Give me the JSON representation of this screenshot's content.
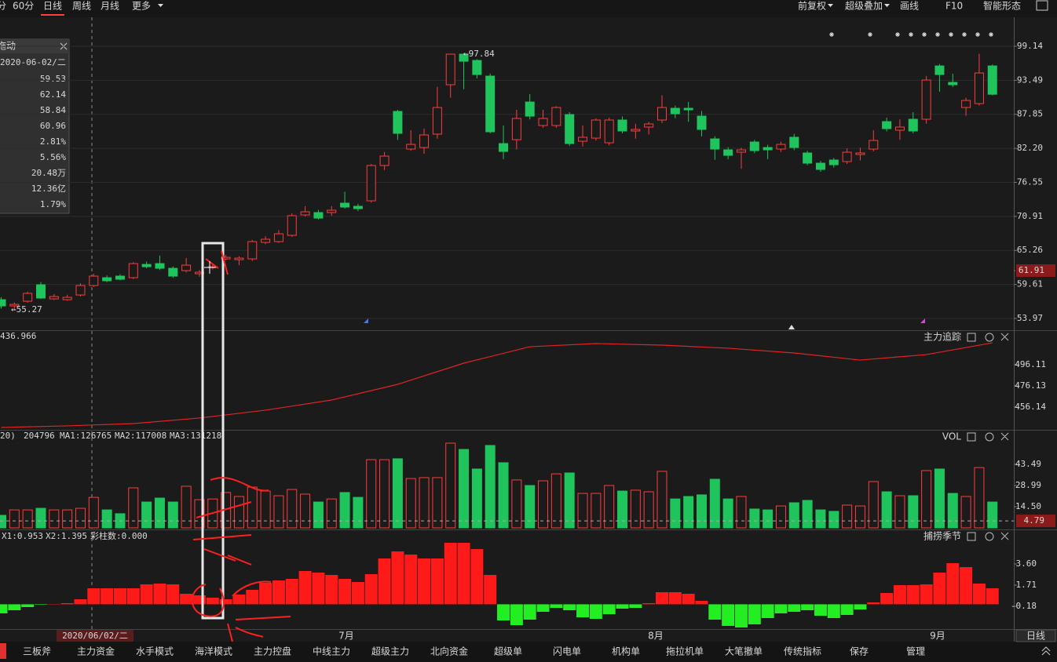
{
  "toolbar": {
    "left": [
      "分",
      "60分",
      "日线",
      "周线",
      "月线",
      "更多"
    ],
    "right": [
      "前复权",
      "超级叠加",
      "画线",
      "F10",
      "智能形态"
    ]
  },
  "info_panel": {
    "title": "拖动",
    "date": "2020-06-02/二",
    "values": [
      "59.53",
      "62.14",
      "58.84",
      "60.96",
      "2.81%",
      "5.56%",
      "20.48万",
      "12.36亿",
      "1.79%"
    ]
  },
  "price_panel": {
    "ylim": [
      52.14,
      103.96
    ],
    "yticks": [
      99.14,
      93.49,
      87.85,
      {
        "value": 82.2,
        "label": "82.20"
      },
      76.55,
      70.91,
      65.26,
      59.61,
      53.97
    ],
    "high_label": "←97.84",
    "low_label": "←55.27",
    "last_price": 61.91,
    "ohlc": [
      [
        57.08,
        57.5,
        55.6,
        56.04
      ],
      [
        56.04,
        56.6,
        55.27,
        56.3
      ],
      [
        56.82,
        58.4,
        56.6,
        58.13
      ],
      [
        59.56,
        60.0,
        57.2,
        57.35
      ],
      [
        57.21,
        58.0,
        57.0,
        57.6
      ],
      [
        57.08,
        57.9,
        56.9,
        57.47
      ],
      [
        57.86,
        59.8,
        57.6,
        59.43
      ],
      [
        59.43,
        61.4,
        59.2,
        60.99
      ],
      [
        60.73,
        61.1,
        60.0,
        60.21
      ],
      [
        60.99,
        61.3,
        60.3,
        60.47
      ],
      [
        60.73,
        63.3,
        60.5,
        63.07
      ],
      [
        62.94,
        63.4,
        62.3,
        62.55
      ],
      [
        63.07,
        64.4,
        62.0,
        62.29
      ],
      [
        62.29,
        62.6,
        60.7,
        60.99
      ],
      [
        61.9,
        64.0,
        61.6,
        62.81
      ],
      [
        61.38,
        62.0,
        60.9,
        61.64
      ],
      [
        62.42,
        62.9,
        62.1,
        62.55
      ],
      [
        63.85,
        64.5,
        63.6,
        64.11
      ],
      [
        63.72,
        64.3,
        62.8,
        63.98
      ],
      [
        63.85,
        67.0,
        63.5,
        66.72
      ],
      [
        66.59,
        67.6,
        66.3,
        67.11
      ],
      [
        66.72,
        68.6,
        66.5,
        68.02
      ],
      [
        67.76,
        71.4,
        67.5,
        71.02
      ],
      [
        71.15,
        72.6,
        70.9,
        71.67
      ],
      [
        71.54,
        72.0,
        70.4,
        70.62
      ],
      [
        71.54,
        72.6,
        71.0,
        71.93
      ],
      [
        73.1,
        75.0,
        72.2,
        72.45
      ],
      [
        72.58,
        73.0,
        71.8,
        72.19
      ],
      [
        73.49,
        79.6,
        73.2,
        79.35
      ],
      [
        79.35,
        81.6,
        78.6,
        80.91
      ],
      [
        88.33,
        88.6,
        83.6,
        84.69
      ],
      [
        82.08,
        85.2,
        81.8,
        82.86
      ],
      [
        82.34,
        85.5,
        81.3,
        84.43
      ],
      [
        84.56,
        92.4,
        83.8,
        88.98
      ],
      [
        92.76,
        97.84,
        90.6,
        97.84
      ],
      [
        97.84,
        98.0,
        92.0,
        96.66
      ],
      [
        96.79,
        97.0,
        93.8,
        94.45
      ],
      [
        94.19,
        94.6,
        84.7,
        84.95
      ],
      [
        82.99,
        86.0,
        80.4,
        81.69
      ],
      [
        83.64,
        88.6,
        82.0,
        87.16
      ],
      [
        89.89,
        91.2,
        87.0,
        87.55
      ],
      [
        85.99,
        88.6,
        85.6,
        87.16
      ],
      [
        85.99,
        89.2,
        85.6,
        88.98
      ],
      [
        87.81,
        88.2,
        82.6,
        82.99
      ],
      [
        83.38,
        86.0,
        82.5,
        84.04
      ],
      [
        83.9,
        87.2,
        83.5,
        86.9
      ],
      [
        83.12,
        87.3,
        82.7,
        86.9
      ],
      [
        86.9,
        87.5,
        84.7,
        85.08
      ],
      [
        85.08,
        86.3,
        83.8,
        85.34
      ],
      [
        85.73,
        86.6,
        84.5,
        86.25
      ],
      [
        86.9,
        91.0,
        86.4,
        88.98
      ],
      [
        88.85,
        89.3,
        87.2,
        87.94
      ],
      [
        88.85,
        89.9,
        86.6,
        88.59
      ],
      [
        87.55,
        88.4,
        84.2,
        85.34
      ],
      [
        83.77,
        84.2,
        80.3,
        82.08
      ],
      [
        81.95,
        82.4,
        80.4,
        81.04
      ],
      [
        81.56,
        82.3,
        78.8,
        81.95
      ],
      [
        83.25,
        83.6,
        81.4,
        81.82
      ],
      [
        82.34,
        82.8,
        80.4,
        81.95
      ],
      [
        82.08,
        83.3,
        81.6,
        82.86
      ],
      [
        84.04,
        84.6,
        81.9,
        82.34
      ],
      [
        81.43,
        81.8,
        79.4,
        79.74
      ],
      [
        79.74,
        80.1,
        78.3,
        78.7
      ],
      [
        80.26,
        80.6,
        79.0,
        79.48
      ],
      [
        80.0,
        82.2,
        79.6,
        81.56
      ],
      [
        81.17,
        82.3,
        80.2,
        81.43
      ],
      [
        82.08,
        85.2,
        81.7,
        83.51
      ],
      [
        86.64,
        87.3,
        85.0,
        85.47
      ],
      [
        85.21,
        87.0,
        83.6,
        85.73
      ],
      [
        87.03,
        88.2,
        84.7,
        85.08
      ],
      [
        87.03,
        94.2,
        86.3,
        93.54
      ],
      [
        95.88,
        96.2,
        91.6,
        94.45
      ],
      [
        93.15,
        94.6,
        92.4,
        92.76
      ],
      [
        88.98,
        90.6,
        87.6,
        90.15
      ],
      [
        89.63,
        97.9,
        89.3,
        94.71
      ],
      [
        95.88,
        96.1,
        91.0,
        91.18
      ]
    ]
  },
  "tracking_panel": {
    "title": "主力追踪",
    "value_label": "436.966",
    "ylim": [
      434.66,
      527.21
    ],
    "yticks": [
      496.11,
      476.13,
      456.14
    ],
    "line": {
      "color": "#e02424",
      "x": [
        0,
        5,
        10,
        15,
        20,
        25,
        30,
        35,
        40,
        45,
        50,
        55,
        60,
        65,
        70,
        75
      ],
      "values": [
        436.88,
        438.4,
        440.6,
        445.8,
        453.2,
        462.8,
        477.6,
        497.6,
        513.1,
        516.1,
        514.6,
        511.7,
        507.2,
        500.5,
        505.7,
        516.8
      ]
    }
  },
  "volume_panel": {
    "title": "VOL",
    "header": [
      "20)",
      "204796",
      "MA1:126765",
      "MA2:117008",
      "MA3:131218"
    ],
    "ylim": [
      0,
      66.04
    ],
    "yticks": [
      43.49,
      28.99,
      {
        "value": 14.5,
        "label": "14.50"
      }
    ],
    "last_value": 4.79,
    "values": [
      8.6,
      12.3,
      12.3,
      13.4,
      12.3,
      12.3,
      13.4,
      20.9,
      12.3,
      9.7,
      27.4,
      17.7,
      20.4,
      17.7,
      28.5,
      19.3,
      19.8,
      24.2,
      21.5,
      27.9,
      25.2,
      22.0,
      26.3,
      23.1,
      17.7,
      19.8,
      24.2,
      20.9,
      46.7,
      46.7,
      47.3,
      33.8,
      34.4,
      34.4,
      58.0,
      53.7,
      40.3,
      56.4,
      44.6,
      32.8,
      29.0,
      32.2,
      37.0,
      37.6,
      23.6,
      23.6,
      29.0,
      25.2,
      25.8,
      24.7,
      38.7,
      19.8,
      21.5,
      22.6,
      33.3,
      19.8,
      21.5,
      12.9,
      12.3,
      15.0,
      17.2,
      18.8,
      12.3,
      11.3,
      15.6,
      15.0,
      31.7,
      24.7,
      22.0,
      22.0,
      39.2,
      40.3,
      23.6,
      21.5,
      41.3,
      17.7
    ]
  },
  "season_panel": {
    "title": "捕捞季节",
    "header": [
      "X1:0.953",
      "X2:1.395",
      "彩柱数:0.000"
    ],
    "ylim": [
      -2.07,
      6.61
    ],
    "yticks": [
      {
        "value": 3.6,
        "label": "3.60"
      },
      1.71,
      -0.18
    ],
    "values": [
      -0.81,
      -0.53,
      -0.25,
      -0.04,
      0.03,
      0.1,
      0.45,
      1.43,
      1.43,
      1.43,
      1.43,
      1.78,
      1.85,
      1.78,
      0.94,
      0.8,
      0.59,
      0.45,
      0.87,
      1.29,
      1.92,
      2.13,
      2.27,
      2.97,
      2.83,
      2.62,
      2.27,
      1.99,
      2.69,
      4.09,
      4.72,
      4.44,
      4.09,
      4.09,
      5.49,
      5.49,
      4.93,
      2.62,
      -1.44,
      -1.86,
      -1.37,
      -0.67,
      -0.32,
      -0.53,
      -1.16,
      -1.3,
      -0.88,
      -0.39,
      -0.32,
      0.1,
      1.08,
      1.08,
      0.94,
      0.31,
      -1.37,
      -1.93,
      -2.07,
      -1.79,
      -1.23,
      -0.81,
      -0.67,
      -0.53,
      -1.02,
      -1.23,
      -0.95,
      -0.46,
      0.17,
      1.01,
      1.71,
      1.71,
      1.78,
      2.83,
      3.67,
      3.32,
      1.85,
      1.43
    ]
  },
  "x_axis": {
    "cursor_date": "2020/06/02/二",
    "months": [
      "7月",
      "8月",
      "9月"
    ],
    "period": "日线"
  },
  "tabs": [
    "三板斧",
    "主力资金",
    "水手模式",
    "海洋模式",
    "主力控盘",
    "中线主力",
    "超级主力",
    "北向资金",
    "超级单",
    "闪电单",
    "机构单",
    "拖拉机单",
    "大笔撤单",
    "传统指标",
    "保存",
    "管理"
  ]
}
